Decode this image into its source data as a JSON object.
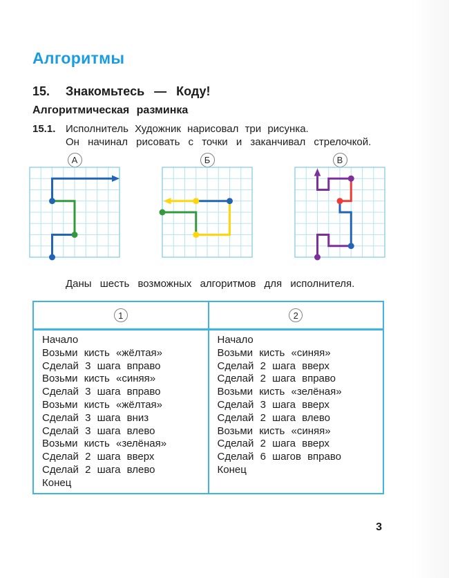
{
  "header": {
    "title": "Алгоритмы",
    "section_number": "15.",
    "section_title": "Знакомьтесь — Коду!",
    "subsection": "Алгоритмическая разминка"
  },
  "exercise": {
    "number": "15.1.",
    "line1": "Исполнитель Художник нарисовал три рисунка.",
    "line2": "Он начинал рисовать с точки и заканчивал стрелочкой."
  },
  "intro": "Даны шесть возможных алгоритмов для исполнителя.",
  "footer": {
    "page_number": "3"
  },
  "colors": {
    "title_accent": "#1b9ce0",
    "table_border": "#3db4e4",
    "grid_line": "#b9e4f2",
    "grid_border": "#8ed2ea",
    "path": {
      "blue": "#2264b6",
      "green": "#339a3c",
      "yellow": "#ffd60a",
      "purple": "#7d2f9b",
      "red": "#ef3b33"
    }
  },
  "pictures": [
    {
      "label": "А",
      "grid": {
        "cols": 8,
        "rows": 8
      },
      "segments": [
        {
          "color": "blue",
          "points": [
            [
              2,
              8
            ],
            [
              2,
              6
            ],
            [
              4,
              6
            ]
          ]
        },
        {
          "color": "green",
          "points": [
            [
              4,
              6
            ],
            [
              4,
              3
            ],
            [
              2,
              3
            ]
          ]
        },
        {
          "color": "blue",
          "points": [
            [
              2,
              3
            ],
            [
              2,
              1
            ],
            [
              8,
              1
            ]
          ],
          "arrow": true
        }
      ],
      "dots": [
        {
          "color": "blue",
          "at": [
            2,
            8
          ]
        },
        {
          "color": "green",
          "at": [
            4,
            6
          ]
        },
        {
          "color": "blue",
          "at": [
            2,
            3
          ]
        }
      ]
    },
    {
      "label": "Б",
      "grid": {
        "cols": 8,
        "rows": 8
      },
      "segments": [
        {
          "color": "green",
          "points": [
            [
              0,
              4
            ],
            [
              3,
              4
            ],
            [
              3,
              6
            ]
          ]
        },
        {
          "color": "yellow",
          "points": [
            [
              3,
              6
            ],
            [
              6,
              6
            ],
            [
              6,
              3
            ]
          ]
        },
        {
          "color": "blue",
          "points": [
            [
              6,
              3
            ],
            [
              3,
              3
            ]
          ]
        },
        {
          "color": "yellow",
          "points": [
            [
              3,
              3
            ],
            [
              0.1,
              3
            ]
          ],
          "arrow": true
        }
      ],
      "dots": [
        {
          "color": "green",
          "at": [
            0,
            4
          ]
        },
        {
          "color": "yellow",
          "at": [
            3,
            6
          ]
        },
        {
          "color": "blue",
          "at": [
            6,
            3
          ]
        },
        {
          "color": "yellow",
          "at": [
            3,
            3
          ]
        }
      ]
    },
    {
      "label": "В",
      "grid": {
        "cols": 8,
        "rows": 8
      },
      "segments": [
        {
          "color": "purple",
          "points": [
            [
              2,
              8
            ],
            [
              2,
              6
            ],
            [
              3,
              6
            ],
            [
              3,
              7
            ],
            [
              5,
              7
            ]
          ]
        },
        {
          "color": "blue",
          "points": [
            [
              5,
              7
            ],
            [
              5,
              4
            ],
            [
              4,
              4
            ],
            [
              4,
              3
            ]
          ]
        },
        {
          "color": "red",
          "points": [
            [
              4,
              3
            ],
            [
              5,
              3
            ],
            [
              5,
              1
            ]
          ]
        },
        {
          "color": "purple",
          "points": [
            [
              5,
              1
            ],
            [
              3,
              1
            ],
            [
              3,
              2
            ],
            [
              2,
              2
            ],
            [
              2,
              0.1
            ]
          ],
          "arrow": true
        }
      ],
      "dots": [
        {
          "color": "purple",
          "at": [
            2,
            8
          ]
        },
        {
          "color": "blue",
          "at": [
            5,
            7
          ]
        },
        {
          "color": "red",
          "at": [
            4,
            3
          ]
        },
        {
          "color": "purple",
          "at": [
            5,
            1
          ]
        }
      ]
    }
  ],
  "table": {
    "columns": [
      {
        "header": "1",
        "lines": [
          "Начало",
          "Возьми кисть «жёлтая»",
          "Сделай 3 шага вправо",
          "Возьми кисть «синяя»",
          "Сделай 3 шага вправо",
          "Возьми кисть «жёлтая»",
          "Сделай 3 шага вниз",
          "Сделай 3 шага влево",
          "Возьми кисть «зелёная»",
          "Сделай 2 шага вверх",
          "Сделай 2 шага влево",
          "Конец"
        ]
      },
      {
        "header": "2",
        "lines": [
          "Начало",
          "Возьми кисть «синяя»",
          "Сделай 2 шага вверх",
          "Сделай 2 шага вправо",
          "Возьми кисть «зелёная»",
          "Сделай 3 шага вверх",
          "Сделай 2 шага влево",
          "Возьми кисть «синяя»",
          "Сделай 2 шага вверх",
          "Сделай 6 шагов вправо",
          "Конец"
        ]
      }
    ]
  }
}
